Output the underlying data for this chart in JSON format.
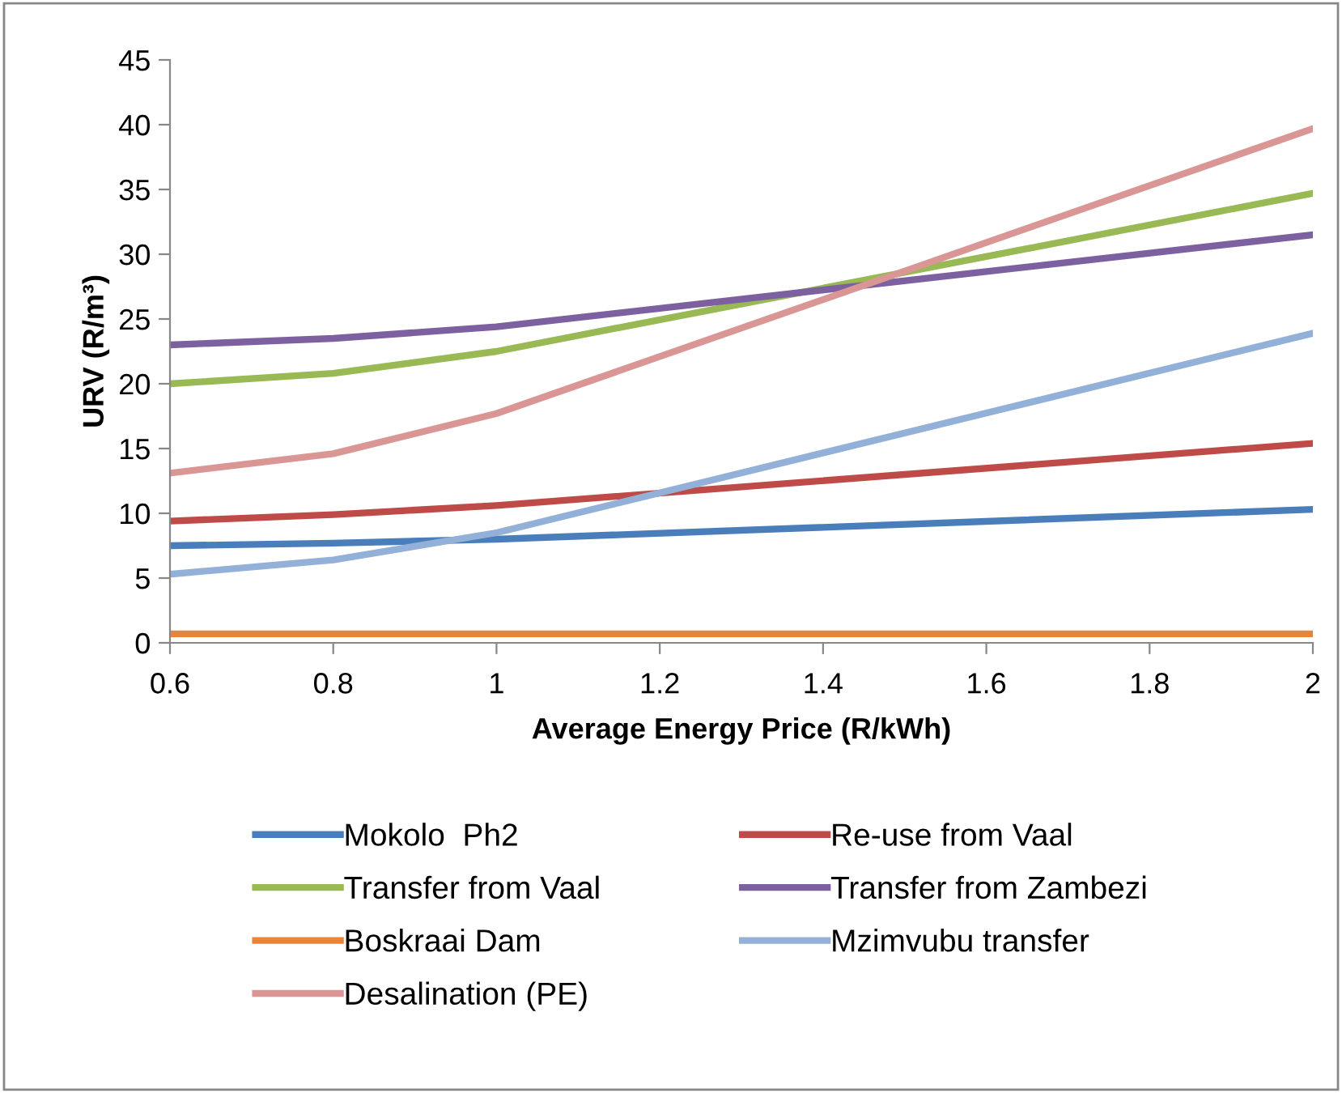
{
  "chart_data": {
    "type": "line",
    "xlabel": "Average Energy Price (R/kWh)",
    "ylabel": "URV (R/m³)",
    "x": [
      0.6,
      0.8,
      1.0,
      2.0
    ],
    "series": [
      {
        "name": "Mokolo  Ph2",
        "color": "#4a7ebb",
        "values": [
          7.5,
          7.7,
          8.0,
          10.3
        ]
      },
      {
        "name": "Re-use from Vaal",
        "color": "#be4b48",
        "values": [
          9.4,
          9.9,
          10.6,
          15.4
        ]
      },
      {
        "name": "Transfer from Vaal",
        "color": "#98b954",
        "values": [
          20.0,
          20.8,
          22.5,
          34.7
        ]
      },
      {
        "name": "Transfer from Zambezi",
        "color": "#7d60a0",
        "values": [
          23.0,
          23.5,
          24.4,
          31.5
        ]
      },
      {
        "name": "Boskraai Dam",
        "color": "#e8843a",
        "values": [
          0.7,
          0.7,
          0.7,
          0.7
        ]
      },
      {
        "name": "Mzimvubu transfer",
        "color": "#93b1d8",
        "values": [
          5.3,
          6.4,
          8.5,
          23.9
        ]
      },
      {
        "name": "Desalination (PE)",
        "color": "#d99694",
        "values": [
          13.1,
          14.6,
          17.7,
          39.7
        ]
      }
    ],
    "xlim": [
      0.6,
      2
    ],
    "xticks": [
      0.6,
      0.8,
      1,
      1.2,
      1.4,
      1.6,
      1.8,
      2
    ],
    "ylim": [
      0,
      45
    ],
    "yticks": [
      0,
      5,
      10,
      15,
      20,
      25,
      30,
      35,
      40,
      45
    ],
    "grid": false,
    "legend": "bottom",
    "marker": "none",
    "line_style": "solid"
  }
}
